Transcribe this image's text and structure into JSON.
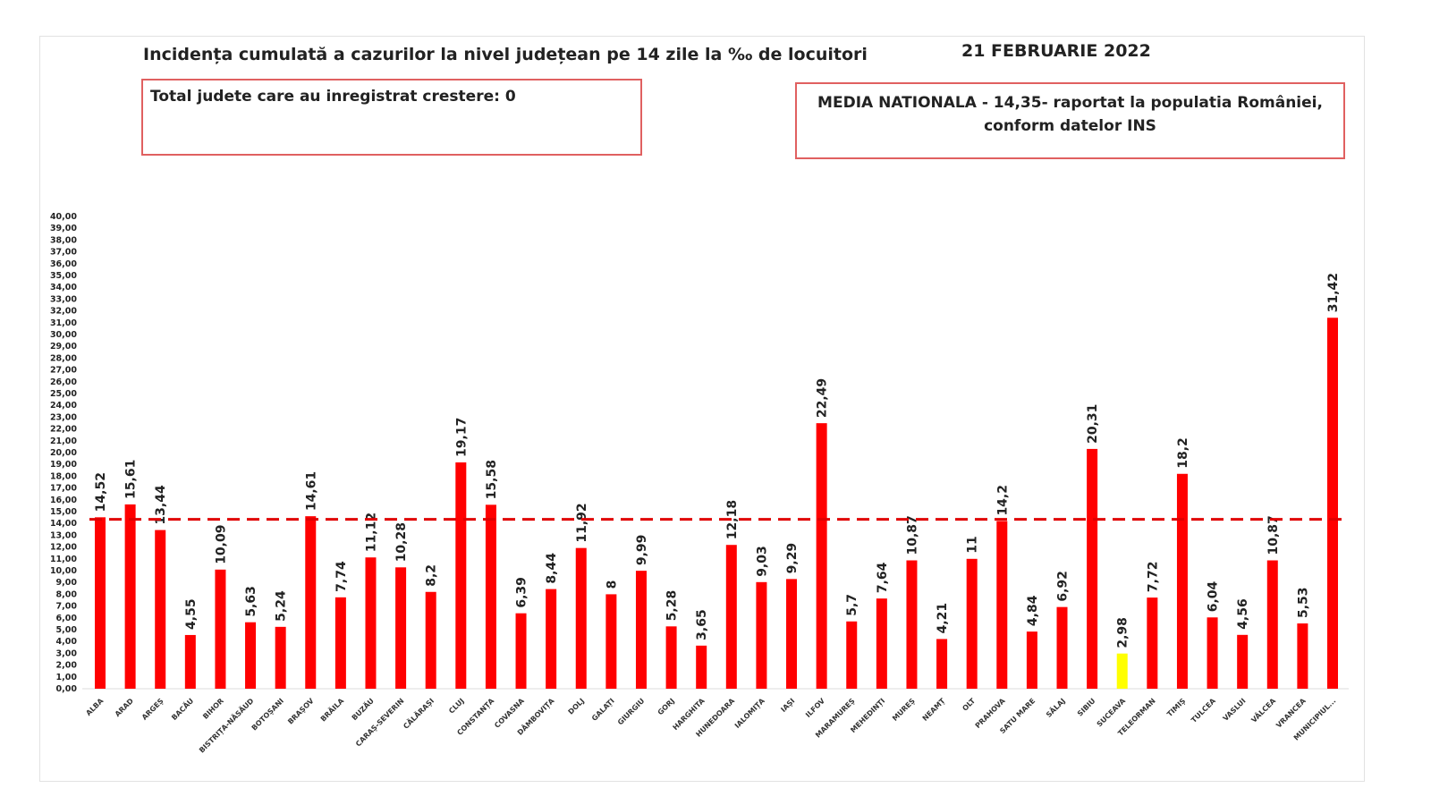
{
  "chart_data": {
    "type": "bar",
    "title": "Incidența cumulată a cazurilor la nivel județean pe 14 zile la ‰ de locuitori",
    "date": "21 FEBRUARIE 2022",
    "annotations": {
      "left_box": "Total judete care au inregistrat crestere: 0",
      "right_box_line1": "MEDIA NATIONALA - 14,35-  raportat la populatia României,",
      "right_box_line2": "conform datelor INS"
    },
    "reference_line": {
      "value": 14.35,
      "style": "dashed",
      "color": "#e00000"
    },
    "ylim": [
      0,
      40
    ],
    "ytick_step": 1,
    "grid": false,
    "legend": "none",
    "bar_color": "#ff0000",
    "highlight_color": "#ffff00",
    "highlight_category": "SUCEAVA",
    "categories": [
      "ALBA",
      "ARAD",
      "ARGEȘ",
      "BACĂU",
      "BIHOR",
      "BISTRIȚA-NĂSĂUD",
      "BOTOȘANI",
      "BRAȘOV",
      "BRĂILA",
      "BUZĂU",
      "CARAȘ-SEVERIN",
      "CĂLĂRAȘI",
      "CLUJ",
      "CONSTANȚA",
      "COVASNA",
      "DÂMBOVIȚA",
      "DOLJ",
      "GALAȚI",
      "GIURGIU",
      "GORJ",
      "HARGHITA",
      "HUNEDOARA",
      "IALOMIȚA",
      "IAȘI",
      "ILFOV",
      "MARAMUREȘ",
      "MEHEDINȚI",
      "MUREȘ",
      "NEAMȚ",
      "OLT",
      "PRAHOVA",
      "SATU MARE",
      "SĂLAJ",
      "SIBIU",
      "SUCEAVA",
      "TELEORMAN",
      "TIMIȘ",
      "TULCEA",
      "VASLUI",
      "VÂLCEA",
      "VRANCEA",
      "MUNICIPIUL..."
    ],
    "values": [
      14.52,
      15.61,
      13.44,
      4.55,
      10.09,
      5.63,
      5.24,
      14.61,
      7.74,
      11.12,
      10.28,
      8.2,
      19.17,
      15.58,
      6.39,
      8.44,
      11.92,
      8,
      9.99,
      5.28,
      3.65,
      12.18,
      9.03,
      9.29,
      22.49,
      5.7,
      7.64,
      10.87,
      4.21,
      11,
      14.2,
      4.84,
      6.92,
      20.31,
      2.98,
      7.72,
      18.2,
      6.04,
      4.56,
      10.87,
      5.53,
      31.42
    ]
  }
}
